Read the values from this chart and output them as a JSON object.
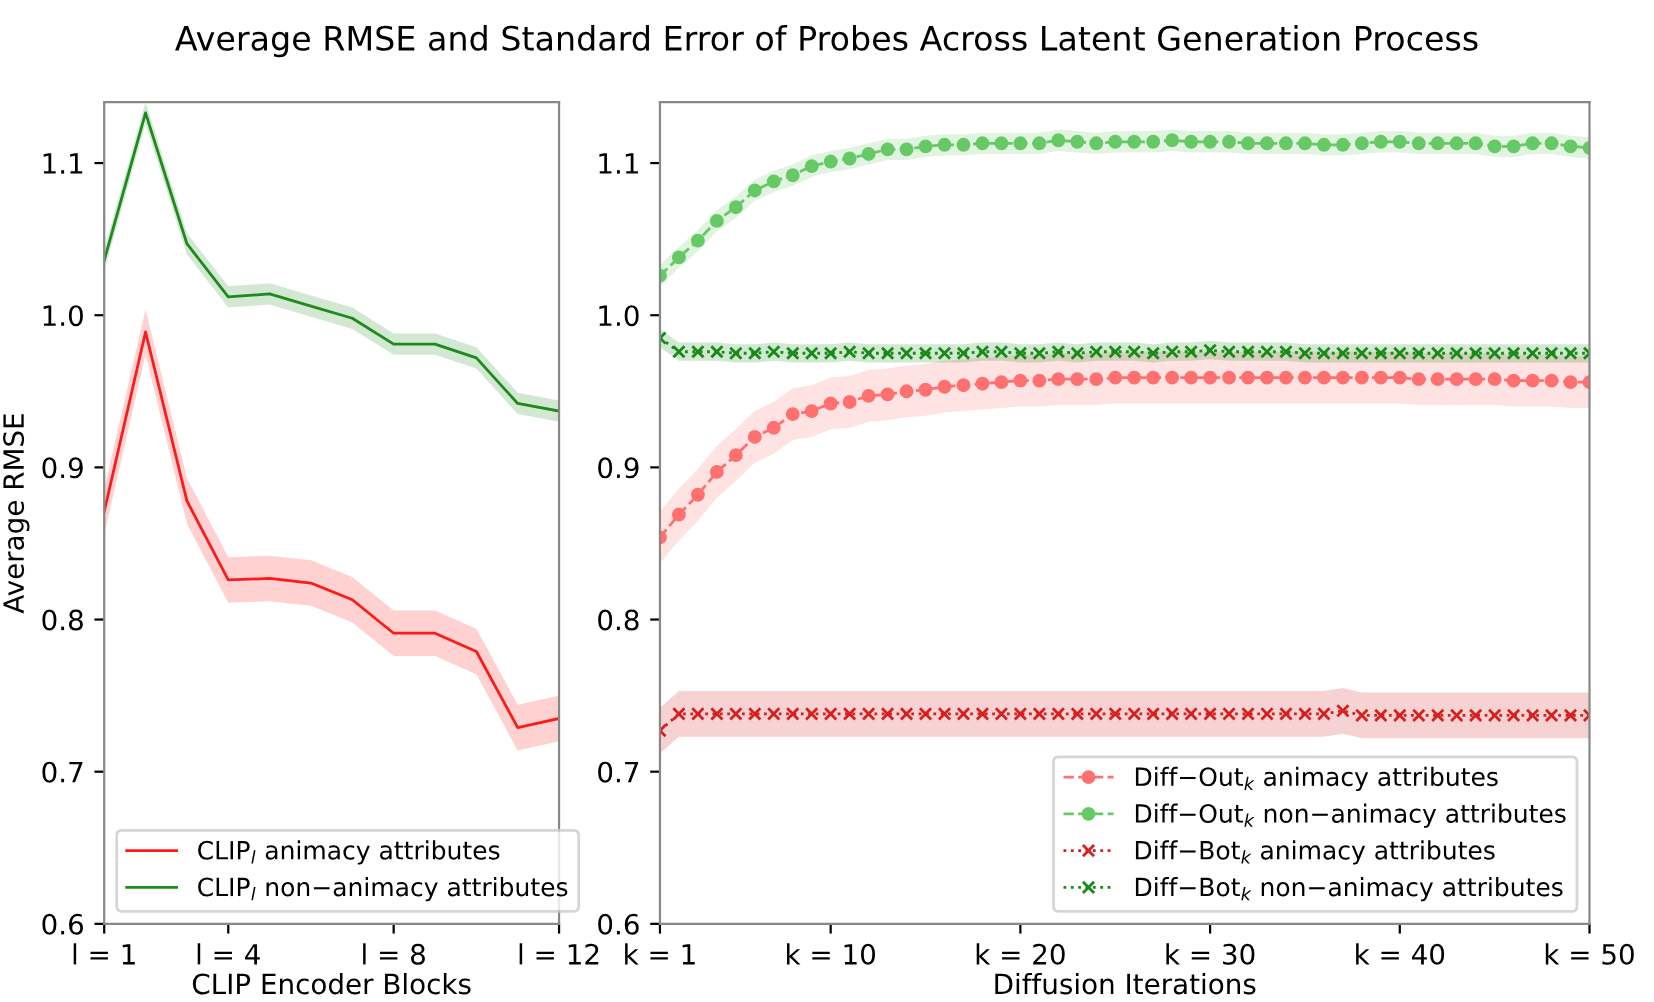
{
  "chart_data": [
    {
      "type": "line",
      "title": "Average RMSE and Standard Error of Probes Across Latent Generation Process",
      "xlabel": "CLIP Encoder Blocks",
      "ylabel": "Average RMSE",
      "x": [
        1,
        2,
        3,
        4,
        5,
        6,
        7,
        8,
        9,
        10,
        11,
        12
      ],
      "xlim": [
        1,
        12
      ],
      "xticks": [
        {
          "value": 1,
          "label": "l = 1"
        },
        {
          "value": 4,
          "label": "l = 4"
        },
        {
          "value": 8,
          "label": "l = 8"
        },
        {
          "value": 12,
          "label": "l = 12"
        }
      ],
      "ylim": [
        0.6,
        1.14
      ],
      "yticks": [
        0.6,
        0.7,
        0.8,
        0.9,
        {
          "value": 1,
          "label": "1.0"
        },
        1.1
      ],
      "grid": false,
      "legend": "bottom left",
      "series": [
        {
          "name": "CLIP$_{l}$ animacy attributes",
          "color": "#ff1a1a",
          "line_style": "solid",
          "marker": "none",
          "values": [
            0.871,
            0.989,
            0.878,
            0.826,
            0.827,
            0.824,
            0.813,
            0.791,
            0.791,
            0.779,
            0.729,
            0.735
          ],
          "lower": [
            0.856,
            0.974,
            0.863,
            0.811,
            0.812,
            0.809,
            0.798,
            0.776,
            0.776,
            0.764,
            0.714,
            0.72
          ],
          "upper": [
            0.886,
            1.004,
            0.893,
            0.841,
            0.842,
            0.839,
            0.828,
            0.806,
            0.806,
            0.794,
            0.744,
            0.75
          ]
        },
        {
          "name": "CLIP$_{l}$ non−animacy attributes",
          "color": "#1e8a1e",
          "line_style": "solid",
          "marker": "none",
          "values": [
            1.036,
            1.133,
            1.047,
            1.012,
            1.014,
            1.006,
            0.998,
            0.981,
            0.981,
            0.972,
            0.942,
            0.937
          ],
          "lower": [
            1.029,
            1.126,
            1.04,
            1.005,
            1.007,
            0.999,
            0.991,
            0.974,
            0.974,
            0.965,
            0.935,
            0.93
          ],
          "upper": [
            1.043,
            1.14,
            1.054,
            1.019,
            1.021,
            1.013,
            1.005,
            0.988,
            0.988,
            0.979,
            0.949,
            0.944
          ]
        }
      ]
    },
    {
      "type": "line",
      "xlabel": "Diffusion Iterations",
      "x": [
        1,
        2,
        3,
        4,
        5,
        6,
        7,
        8,
        9,
        10,
        11,
        12,
        13,
        14,
        15,
        16,
        17,
        18,
        19,
        20,
        21,
        22,
        23,
        24,
        25,
        26,
        27,
        28,
        29,
        30,
        31,
        32,
        33,
        34,
        35,
        36,
        37,
        38,
        39,
        40,
        41,
        42,
        43,
        44,
        45,
        46,
        47,
        48,
        49,
        50
      ],
      "xlim": [
        1,
        50
      ],
      "xticks": [
        {
          "value": 1,
          "label": "k = 1"
        },
        {
          "value": 10,
          "label": "k = 10"
        },
        {
          "value": 20,
          "label": "k = 20"
        },
        {
          "value": 30,
          "label": "k = 30"
        },
        {
          "value": 40,
          "label": "k = 40"
        },
        {
          "value": 50,
          "label": "k = 50"
        }
      ],
      "ylim": [
        0.6,
        1.14
      ],
      "yticks": [
        0.6,
        0.7,
        0.8,
        0.9,
        {
          "value": 1,
          "label": "1.0"
        },
        1.1
      ],
      "grid": false,
      "legend": "bottom right",
      "series": [
        {
          "name": "Diff−Out$_{k}$ animacy attributes",
          "color": "#ff7070",
          "line_style": "dashed",
          "marker": "circle",
          "values": [
            0.854,
            0.869,
            0.882,
            0.897,
            0.908,
            0.92,
            0.926,
            0.935,
            0.937,
            0.942,
            0.943,
            0.947,
            0.948,
            0.95,
            0.951,
            0.953,
            0.954,
            0.955,
            0.956,
            0.957,
            0.957,
            0.958,
            0.958,
            0.958,
            0.959,
            0.959,
            0.959,
            0.959,
            0.959,
            0.959,
            0.959,
            0.959,
            0.959,
            0.959,
            0.959,
            0.959,
            0.959,
            0.959,
            0.959,
            0.959,
            0.958,
            0.958,
            0.958,
            0.958,
            0.958,
            0.957,
            0.957,
            0.957,
            0.956,
            0.956
          ],
          "lower": [
            0.837,
            0.852,
            0.865,
            0.88,
            0.891,
            0.903,
            0.909,
            0.918,
            0.92,
            0.925,
            0.926,
            0.93,
            0.931,
            0.933,
            0.934,
            0.936,
            0.937,
            0.938,
            0.939,
            0.94,
            0.94,
            0.941,
            0.941,
            0.941,
            0.942,
            0.942,
            0.942,
            0.942,
            0.942,
            0.942,
            0.942,
            0.942,
            0.942,
            0.942,
            0.942,
            0.942,
            0.942,
            0.942,
            0.942,
            0.942,
            0.941,
            0.941,
            0.941,
            0.941,
            0.941,
            0.94,
            0.94,
            0.94,
            0.939,
            0.939
          ],
          "upper": [
            0.871,
            0.886,
            0.899,
            0.914,
            0.925,
            0.937,
            0.943,
            0.952,
            0.954,
            0.959,
            0.96,
            0.964,
            0.965,
            0.967,
            0.968,
            0.97,
            0.971,
            0.972,
            0.973,
            0.974,
            0.974,
            0.975,
            0.975,
            0.975,
            0.976,
            0.976,
            0.976,
            0.976,
            0.976,
            0.976,
            0.976,
            0.976,
            0.976,
            0.976,
            0.976,
            0.976,
            0.976,
            0.976,
            0.976,
            0.976,
            0.975,
            0.975,
            0.975,
            0.975,
            0.975,
            0.974,
            0.974,
            0.974,
            0.973,
            0.973
          ]
        },
        {
          "name": "Diff−Out$_{k}$ non−animacy attributes",
          "color": "#66c966",
          "line_style": "dashed",
          "marker": "circle",
          "values": [
            1.026,
            1.038,
            1.049,
            1.062,
            1.071,
            1.082,
            1.088,
            1.092,
            1.098,
            1.101,
            1.103,
            1.106,
            1.109,
            1.109,
            1.111,
            1.112,
            1.112,
            1.113,
            1.113,
            1.113,
            1.113,
            1.115,
            1.114,
            1.113,
            1.114,
            1.114,
            1.114,
            1.115,
            1.114,
            1.114,
            1.114,
            1.113,
            1.113,
            1.113,
            1.113,
            1.112,
            1.112,
            1.113,
            1.114,
            1.114,
            1.113,
            1.113,
            1.113,
            1.113,
            1.111,
            1.111,
            1.113,
            1.113,
            1.111,
            1.11
          ],
          "lower": [
            1.019,
            1.031,
            1.042,
            1.055,
            1.064,
            1.075,
            1.081,
            1.085,
            1.091,
            1.094,
            1.096,
            1.099,
            1.102,
            1.102,
            1.104,
            1.105,
            1.105,
            1.106,
            1.106,
            1.106,
            1.106,
            1.108,
            1.107,
            1.106,
            1.107,
            1.107,
            1.107,
            1.108,
            1.107,
            1.107,
            1.107,
            1.106,
            1.106,
            1.106,
            1.106,
            1.105,
            1.105,
            1.106,
            1.107,
            1.107,
            1.106,
            1.106,
            1.106,
            1.106,
            1.104,
            1.104,
            1.106,
            1.106,
            1.104,
            1.103
          ],
          "upper": [
            1.033,
            1.045,
            1.056,
            1.069,
            1.078,
            1.089,
            1.095,
            1.099,
            1.105,
            1.108,
            1.11,
            1.113,
            1.116,
            1.116,
            1.118,
            1.119,
            1.119,
            1.12,
            1.12,
            1.12,
            1.12,
            1.122,
            1.121,
            1.12,
            1.121,
            1.121,
            1.121,
            1.122,
            1.121,
            1.121,
            1.121,
            1.12,
            1.12,
            1.12,
            1.12,
            1.119,
            1.119,
            1.12,
            1.121,
            1.121,
            1.12,
            1.12,
            1.12,
            1.12,
            1.118,
            1.118,
            1.12,
            1.12,
            1.118,
            1.117
          ]
        },
        {
          "name": "Diff−Bot$_{k}$ animacy attributes",
          "color": "#d62020",
          "line_style": "dotted",
          "marker": "cross",
          "values": [
            0.727,
            0.738,
            0.738,
            0.738,
            0.738,
            0.738,
            0.738,
            0.738,
            0.738,
            0.738,
            0.738,
            0.738,
            0.738,
            0.738,
            0.738,
            0.738,
            0.738,
            0.738,
            0.738,
            0.738,
            0.738,
            0.738,
            0.738,
            0.738,
            0.738,
            0.738,
            0.738,
            0.738,
            0.738,
            0.738,
            0.738,
            0.738,
            0.738,
            0.738,
            0.738,
            0.738,
            0.74,
            0.737,
            0.737,
            0.737,
            0.737,
            0.737,
            0.737,
            0.737,
            0.737,
            0.737,
            0.737,
            0.737,
            0.737,
            0.737
          ],
          "lower": [
            0.712,
            0.723,
            0.723,
            0.723,
            0.723,
            0.723,
            0.723,
            0.723,
            0.723,
            0.723,
            0.723,
            0.723,
            0.723,
            0.723,
            0.723,
            0.723,
            0.723,
            0.723,
            0.723,
            0.723,
            0.723,
            0.723,
            0.723,
            0.723,
            0.723,
            0.723,
            0.723,
            0.723,
            0.723,
            0.723,
            0.723,
            0.723,
            0.723,
            0.723,
            0.723,
            0.723,
            0.725,
            0.722,
            0.722,
            0.722,
            0.722,
            0.722,
            0.722,
            0.722,
            0.722,
            0.722,
            0.722,
            0.722,
            0.722,
            0.722
          ],
          "upper": [
            0.742,
            0.753,
            0.753,
            0.753,
            0.753,
            0.753,
            0.753,
            0.753,
            0.753,
            0.753,
            0.753,
            0.753,
            0.753,
            0.753,
            0.753,
            0.753,
            0.753,
            0.753,
            0.753,
            0.753,
            0.753,
            0.753,
            0.753,
            0.753,
            0.753,
            0.753,
            0.753,
            0.753,
            0.753,
            0.753,
            0.753,
            0.753,
            0.753,
            0.753,
            0.753,
            0.753,
            0.755,
            0.752,
            0.752,
            0.752,
            0.752,
            0.752,
            0.752,
            0.752,
            0.752,
            0.752,
            0.752,
            0.752,
            0.752,
            0.752
          ]
        },
        {
          "name": "Diff−Bot$_{k}$ non−animacy attributes",
          "color": "#178a17",
          "line_style": "dotted",
          "marker": "cross",
          "values": [
            0.985,
            0.976,
            0.976,
            0.976,
            0.975,
            0.975,
            0.976,
            0.975,
            0.975,
            0.975,
            0.976,
            0.975,
            0.975,
            0.975,
            0.975,
            0.975,
            0.975,
            0.976,
            0.976,
            0.975,
            0.975,
            0.976,
            0.975,
            0.976,
            0.976,
            0.976,
            0.975,
            0.976,
            0.976,
            0.977,
            0.976,
            0.976,
            0.976,
            0.976,
            0.975,
            0.975,
            0.975,
            0.975,
            0.975,
            0.975,
            0.975,
            0.975,
            0.975,
            0.975,
            0.975,
            0.975,
            0.975,
            0.975,
            0.975,
            0.975
          ],
          "lower": [
            0.979,
            0.97,
            0.97,
            0.97,
            0.969,
            0.969,
            0.97,
            0.969,
            0.969,
            0.969,
            0.97,
            0.969,
            0.969,
            0.969,
            0.969,
            0.969,
            0.969,
            0.97,
            0.97,
            0.969,
            0.969,
            0.97,
            0.969,
            0.97,
            0.97,
            0.97,
            0.969,
            0.97,
            0.97,
            0.971,
            0.97,
            0.97,
            0.97,
            0.97,
            0.969,
            0.969,
            0.969,
            0.969,
            0.969,
            0.969,
            0.969,
            0.969,
            0.969,
            0.969,
            0.969,
            0.969,
            0.969,
            0.969,
            0.969,
            0.969
          ],
          "upper": [
            0.991,
            0.982,
            0.982,
            0.982,
            0.981,
            0.981,
            0.982,
            0.981,
            0.981,
            0.981,
            0.982,
            0.981,
            0.981,
            0.981,
            0.981,
            0.981,
            0.981,
            0.982,
            0.982,
            0.981,
            0.981,
            0.982,
            0.981,
            0.982,
            0.982,
            0.982,
            0.981,
            0.982,
            0.982,
            0.983,
            0.982,
            0.982,
            0.982,
            0.982,
            0.981,
            0.981,
            0.981,
            0.981,
            0.981,
            0.981,
            0.981,
            0.981,
            0.981,
            0.981,
            0.981,
            0.981,
            0.981,
            0.981,
            0.981,
            0.981
          ]
        }
      ]
    }
  ]
}
